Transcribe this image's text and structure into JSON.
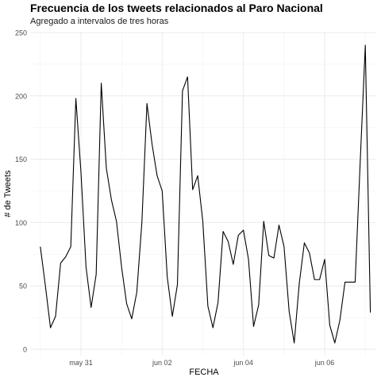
{
  "chart_data": {
    "type": "line",
    "title": "Frecuencia de los tweets relacionados al Paro Nacional",
    "subtitle": "Agregado a intervalos de tres horas",
    "xlabel": "FECHA",
    "ylabel": "# de Tweets",
    "x_unit": "days since 2021-05-30 00:00 (3-hour bins)",
    "xlim": [
      -0.25,
      8.25
    ],
    "ylim": [
      -5,
      250
    ],
    "x_ticks": [
      {
        "value": 1,
        "label": "may 31"
      },
      {
        "value": 3,
        "label": "jun 02"
      },
      {
        "value": 5,
        "label": "jun 04"
      },
      {
        "value": 7,
        "label": "jun 06"
      }
    ],
    "y_ticks": [
      {
        "value": 0,
        "label": "0"
      },
      {
        "value": 50,
        "label": "50"
      },
      {
        "value": 100,
        "label": "100"
      },
      {
        "value": 150,
        "label": "150"
      },
      {
        "value": 200,
        "label": "200"
      },
      {
        "value": 250,
        "label": "250"
      }
    ],
    "grid": true,
    "line_color": "#000000",
    "series": [
      {
        "x": [
          0,
          0.125,
          0.25,
          0.375,
          0.5,
          0.625,
          0.75,
          0.875,
          1.0,
          1.125,
          1.25,
          1.375,
          1.5,
          1.625,
          1.75,
          1.875,
          2.0,
          2.125,
          2.25,
          2.375,
          2.5,
          2.625,
          2.75,
          2.875,
          3.0,
          3.125,
          3.25,
          3.375,
          3.5,
          3.625,
          3.75,
          3.875,
          4.0,
          4.125,
          4.25,
          4.375,
          4.5,
          4.625,
          4.75,
          4.875,
          5.0,
          5.125,
          5.25,
          5.375,
          5.5,
          5.625,
          5.75,
          5.875,
          6.0,
          6.125,
          6.25,
          6.375,
          6.5,
          6.625,
          6.75,
          6.875,
          7.0,
          7.125,
          7.25,
          7.375,
          7.5,
          7.625,
          7.75,
          7.875,
          8.0
        ],
        "values": [
          81,
          50,
          17,
          26,
          68,
          73,
          81,
          198,
          140,
          65,
          33,
          59,
          210,
          143,
          118,
          101,
          65,
          36,
          24,
          45,
          100,
          194,
          162,
          137,
          125,
          57,
          26,
          51,
          204,
          215,
          126,
          137,
          101,
          34,
          17,
          37,
          93,
          85,
          67,
          90,
          94,
          71,
          18,
          35,
          101,
          74,
          72,
          98,
          81,
          30,
          5,
          52,
          84,
          76,
          55,
          55,
          71,
          19,
          5,
          23,
          53,
          53,
          53,
          148,
          240
        ]
      }
    ],
    "last_point": {
      "x": 8.125,
      "value": 29
    }
  }
}
